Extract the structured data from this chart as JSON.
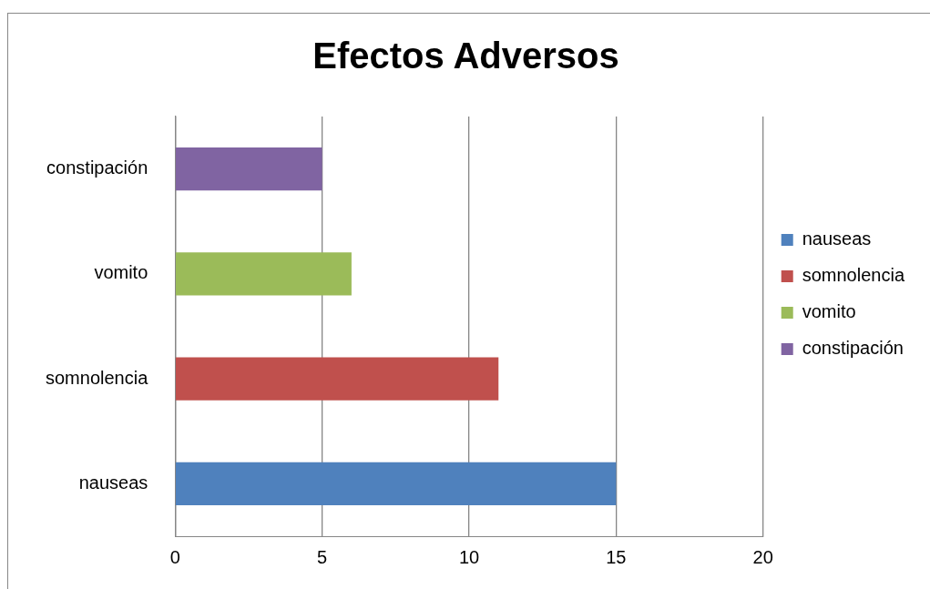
{
  "chart_data": {
    "type": "bar",
    "title": "Efectos Adversos",
    "orientation": "horizontal",
    "stacked": true,
    "categories": [
      "constipación",
      "vomito",
      "somnolencia",
      "nauseas"
    ],
    "series": [
      {
        "name": "nauseas",
        "color": "#4f81bd",
        "values": [
          null,
          null,
          null,
          15
        ]
      },
      {
        "name": "somnolencia",
        "color": "#c0504d",
        "values": [
          null,
          null,
          11,
          null
        ]
      },
      {
        "name": "vomito",
        "color": "#9bbb59",
        "values": [
          null,
          6,
          null,
          null
        ]
      },
      {
        "name": "constipación",
        "color": "#8064a2",
        "values": [
          5,
          null,
          null,
          null
        ]
      }
    ],
    "xlim": [
      0,
      20
    ],
    "xticks": [
      0,
      5,
      10,
      15,
      20
    ],
    "grid": "x",
    "legend": "right"
  }
}
